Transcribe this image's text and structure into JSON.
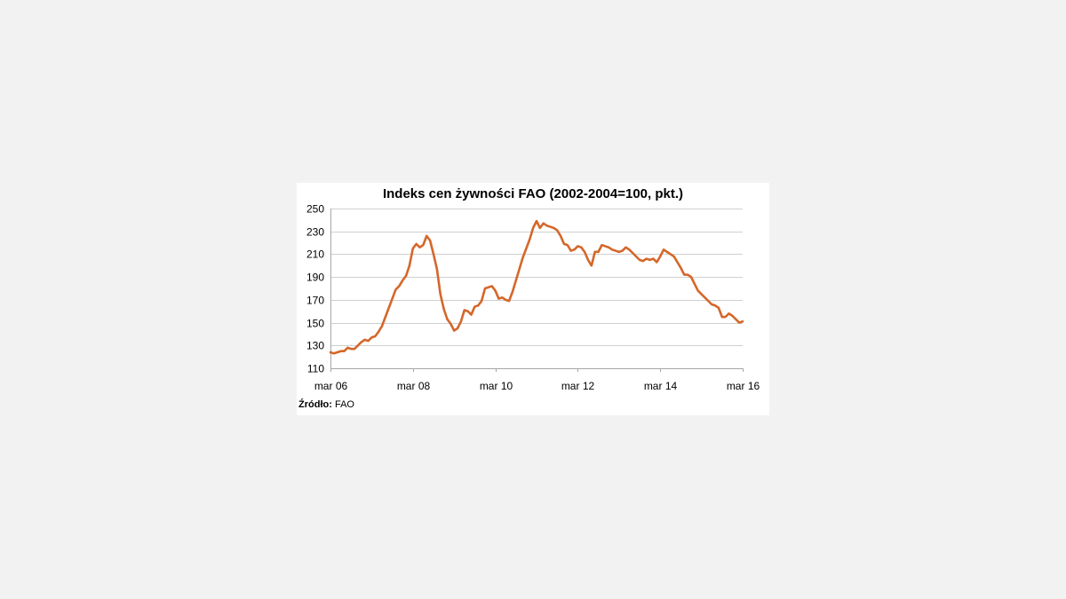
{
  "chart_data": {
    "type": "line",
    "title": "Indeks cen żywności FAO (2002-2004=100, pkt.)",
    "xlabel": "",
    "ylabel": "",
    "ylim": [
      110,
      250
    ],
    "yticks": [
      110,
      130,
      150,
      170,
      190,
      210,
      230,
      250
    ],
    "xticks": [
      {
        "label": "mar 06",
        "index": 0
      },
      {
        "label": "mar 08",
        "index": 24
      },
      {
        "label": "mar 10",
        "index": 48
      },
      {
        "label": "mar 12",
        "index": 72
      },
      {
        "label": "mar 14",
        "index": 96
      },
      {
        "label": "mar 16",
        "index": 120
      }
    ],
    "grid": true,
    "series": [
      {
        "name": "Indeks cen żywności FAO",
        "color": "#d4672a",
        "values": [
          124,
          123,
          124,
          125,
          125,
          128,
          127,
          127,
          130,
          133,
          135,
          134,
          137,
          138,
          142,
          147,
          155,
          163,
          171,
          179,
          182,
          187,
          191,
          200,
          215,
          219,
          216,
          218,
          226,
          222,
          210,
          197,
          175,
          162,
          153,
          149,
          143,
          145,
          151,
          161,
          160,
          157,
          164,
          165,
          169,
          180,
          181,
          182,
          178,
          171,
          172,
          170,
          169,
          177,
          187,
          197,
          207,
          215,
          223,
          233,
          239,
          233,
          237,
          235,
          234,
          233,
          231,
          226,
          219,
          218,
          213,
          214,
          217,
          216,
          212,
          205,
          200,
          212,
          212,
          218,
          217,
          216,
          214,
          213,
          212,
          213,
          216,
          214,
          211,
          208,
          205,
          204,
          206,
          205,
          206,
          203,
          208,
          214,
          212,
          210,
          208,
          203,
          198,
          192,
          192,
          190,
          184,
          178,
          175,
          172,
          169,
          166,
          165,
          163,
          155,
          155,
          158,
          156,
          153,
          150,
          151
        ]
      }
    ]
  },
  "source": {
    "label": "Źródło:",
    "value": "FAO"
  }
}
